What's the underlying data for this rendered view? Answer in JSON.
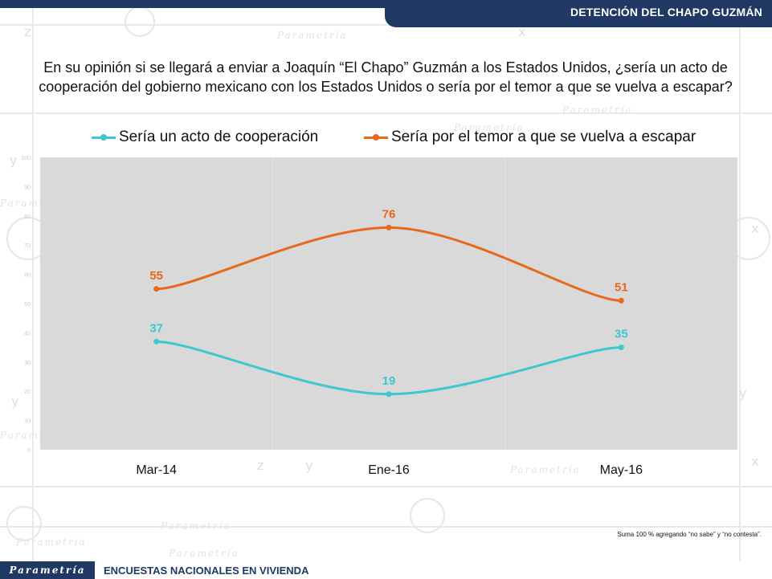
{
  "header": {
    "title": "DETENCIÓN DEL CHAPO GUZMÁN"
  },
  "question": {
    "line1": "En su opinión si se llegará a enviar a Joaquín “El Chapo” Guzmán a los Estados Unidos, ¿sería un acto de",
    "line2": "cooperación del gobierno mexicano con los Estados Unidos o sería por el temor a que se vuelva a escapar?"
  },
  "chart_data": {
    "type": "line",
    "categories": [
      "Mar-14",
      "Ene-16",
      "May-16"
    ],
    "series": [
      {
        "name": "Sería un acto de cooperación",
        "values": [
          37,
          19,
          35
        ],
        "color": "#3cc8cc"
      },
      {
        "name": "Sería por el temor a que se vuelva a escapar",
        "values": [
          55,
          76,
          51
        ],
        "color": "#e8681d"
      }
    ],
    "ylim": [
      0,
      100
    ],
    "yticks": [
      0,
      10,
      20,
      30,
      40,
      50,
      60,
      70,
      80,
      90,
      100
    ],
    "grid": true,
    "legend_position": "top",
    "plot_background": "#d9d9d9",
    "smooth": true
  },
  "footnote": "Suma 100 %  agregando “no sabe” y “no contesta”.",
  "footer": {
    "logo": "Parametría",
    "label": "ENCUESTAS NACIONALES EN VIVIENDA"
  },
  "watermark": {
    "brand": "Parametría"
  },
  "colors": {
    "navy": "#1f3864",
    "teal": "#3cc8cc",
    "orange": "#e8681d"
  }
}
